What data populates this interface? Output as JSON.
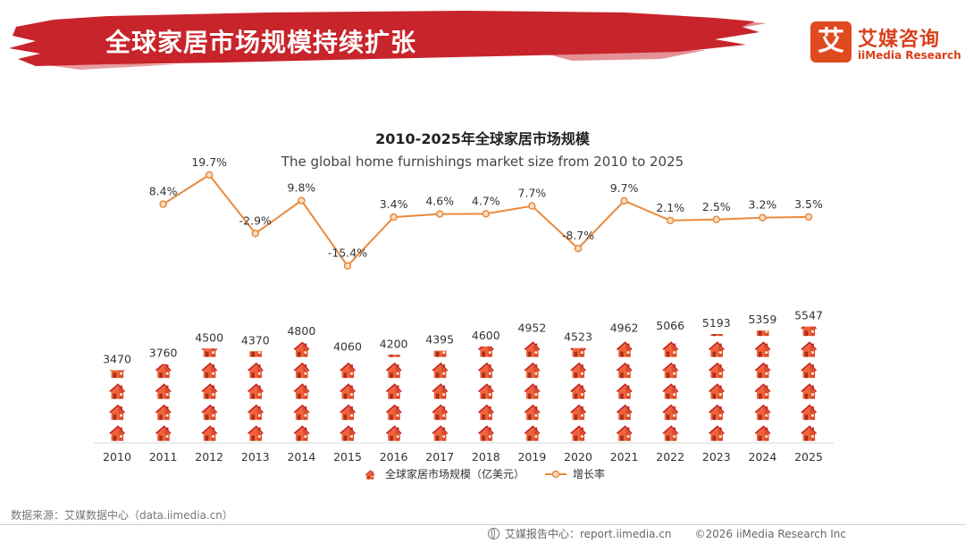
{
  "header": {
    "title": "全球家居市场规模持续扩张",
    "logo_mark": "艾",
    "logo_cn": "艾媒咨询",
    "logo_en": "iiMedia Research"
  },
  "colors": {
    "banner": "#c8242b",
    "house_roof": "#c9281f",
    "house_wall": "#f0623a",
    "line": "#e98a3c",
    "marker_fill": "#f8dcc3"
  },
  "chart_data": {
    "type": "bar",
    "title": "2010-2025年全球家居市场规模",
    "subtitle": "The global home furnishings market size from 2010 to 2025",
    "categories": [
      "2010",
      "2011",
      "2012",
      "2013",
      "2014",
      "2015",
      "2016",
      "2017",
      "2018",
      "2019",
      "2020",
      "2021",
      "2022",
      "2023",
      "2024",
      "2025"
    ],
    "series": [
      {
        "name": "全球家居市场规模（亿美元）",
        "type": "pictorial-bar",
        "values": [
          3470,
          3760,
          4500,
          4370,
          4800,
          4060,
          4200,
          4395,
          4600,
          4952,
          4523,
          4962,
          5066,
          5193,
          5359,
          5547
        ]
      },
      {
        "name": "增长率",
        "type": "line",
        "values": [
          null,
          8.4,
          19.7,
          -2.9,
          9.8,
          -15.4,
          3.4,
          4.6,
          4.7,
          7.7,
          -8.7,
          9.7,
          2.1,
          2.5,
          3.2,
          3.5
        ],
        "labels": [
          "",
          "8.4%",
          "19.7%",
          "-2.9%",
          "9.8%",
          "-15.4%",
          "3.4%",
          "4.6%",
          "4.7%",
          "7.7%",
          "-8.7%",
          "9.7%",
          "2.1%",
          "2.5%",
          "3.2%",
          "3.5%"
        ]
      }
    ],
    "legend_position": "bottom"
  },
  "source": "数据来源：艾媒数据中心（data.iimedia.cn）",
  "footer": {
    "report_center": "艾媒报告中心：report.iimedia.cn",
    "copyright": "©2026  iiMedia Research  Inc"
  }
}
